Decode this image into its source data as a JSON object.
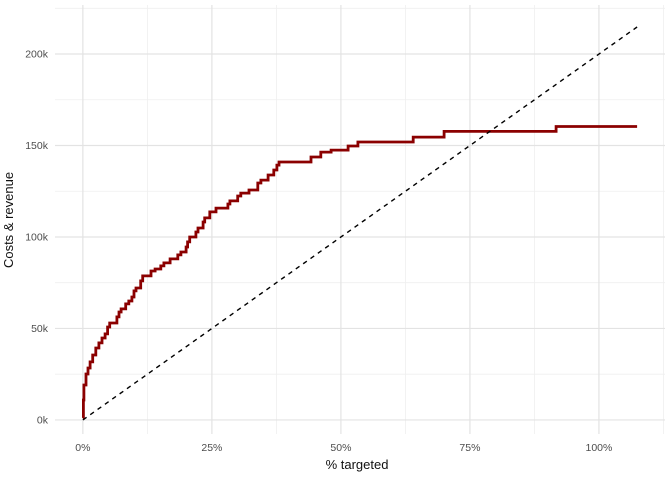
{
  "figure": {
    "background": "#ffffff"
  },
  "chart_data": {
    "type": "line",
    "title": "",
    "xlabel": "% targeted",
    "ylabel": "Costs & revenue",
    "legend": "none",
    "grid": {
      "show": true,
      "major_color": "#e3e3e3",
      "minor_color": "#efefef"
    },
    "xlim": [
      -5.4,
      112.8
    ],
    "ylim": [
      -7.7,
      226.8
    ],
    "x_ticks": [
      {
        "value": 0,
        "label": "0%"
      },
      {
        "value": 25,
        "label": "25%"
      },
      {
        "value": 50,
        "label": "50%"
      },
      {
        "value": 75,
        "label": "75%"
      },
      {
        "value": 100,
        "label": "100%"
      }
    ],
    "y_ticks": [
      {
        "value": 0,
        "label": "0k"
      },
      {
        "value": 50,
        "label": "50k"
      },
      {
        "value": 100,
        "label": "100k"
      },
      {
        "value": 150,
        "label": "150k"
      },
      {
        "value": 200,
        "label": "200k"
      }
    ],
    "x_minor": [
      12.5,
      37.5,
      62.5,
      87.5,
      112.5
    ],
    "y_minor": [
      25,
      75,
      125,
      175,
      225
    ],
    "series": [
      {
        "name": "cumulative-revenue-step-curve",
        "kind": "step",
        "color": "#8b0000",
        "stroke_width": 2.8,
        "points": [
          [
            0,
            1.1
          ],
          [
            0.1,
            10.9
          ],
          [
            0.2,
            19.1
          ],
          [
            0.6,
            25.1
          ],
          [
            1.0,
            28.4
          ],
          [
            1.4,
            31.7
          ],
          [
            1.9,
            35.5
          ],
          [
            2.5,
            39.3
          ],
          [
            3.1,
            42.1
          ],
          [
            3.7,
            44.8
          ],
          [
            4.3,
            47.0
          ],
          [
            4.8,
            50.8
          ],
          [
            5.2,
            53.0
          ],
          [
            6.6,
            56.3
          ],
          [
            7.0,
            59.0
          ],
          [
            7.4,
            60.7
          ],
          [
            8.3,
            63.4
          ],
          [
            8.9,
            65.0
          ],
          [
            9.5,
            67.2
          ],
          [
            9.9,
            70.5
          ],
          [
            10.3,
            72.1
          ],
          [
            11.2,
            76.0
          ],
          [
            11.6,
            78.7
          ],
          [
            13.2,
            81.4
          ],
          [
            14.0,
            82.5
          ],
          [
            15.1,
            84.2
          ],
          [
            15.7,
            85.8
          ],
          [
            16.9,
            88.0
          ],
          [
            18.4,
            90.2
          ],
          [
            19.0,
            91.8
          ],
          [
            20.0,
            94.5
          ],
          [
            20.3,
            97.3
          ],
          [
            20.7,
            100.0
          ],
          [
            21.9,
            102.7
          ],
          [
            22.3,
            104.9
          ],
          [
            23.3,
            108.2
          ],
          [
            23.6,
            110.4
          ],
          [
            24.6,
            113.7
          ],
          [
            25.8,
            115.8
          ],
          [
            28.1,
            118.0
          ],
          [
            28.5,
            119.7
          ],
          [
            30.0,
            122.4
          ],
          [
            30.6,
            124.0
          ],
          [
            32.2,
            125.7
          ],
          [
            33.9,
            129.5
          ],
          [
            34.5,
            131.1
          ],
          [
            35.9,
            133.9
          ],
          [
            37.0,
            136.6
          ],
          [
            37.6,
            139.3
          ],
          [
            38.0,
            141.0
          ],
          [
            44.2,
            143.7
          ],
          [
            46.1,
            146.4
          ],
          [
            48.1,
            147.5
          ],
          [
            51.4,
            149.7
          ],
          [
            53.3,
            151.9
          ],
          [
            64.0,
            154.6
          ],
          [
            70.0,
            157.7
          ],
          [
            91.7,
            160.4
          ],
          [
            107.4,
            160.4
          ]
        ]
      },
      {
        "name": "cost-baseline-dashed-line",
        "kind": "line",
        "color": "#000000",
        "stroke_width": 1.4,
        "dash": [
          4.5,
          4.5
        ],
        "points": [
          [
            0,
            0
          ],
          [
            107.4,
            214.8
          ]
        ]
      }
    ]
  }
}
